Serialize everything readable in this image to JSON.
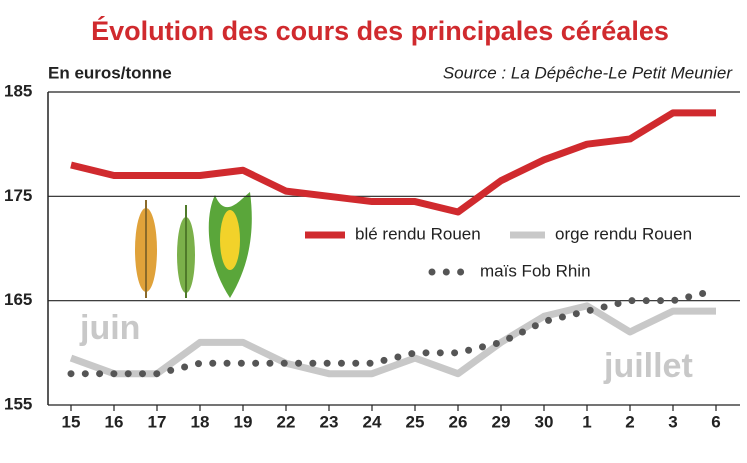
{
  "chart_data": {
    "type": "line",
    "title": "Évolution des cours des principales céréales",
    "y_label": "En euros/tonne",
    "source": "Source : La Dépêche-Le Petit Meunier",
    "annotations": [
      "juin",
      "juillet"
    ],
    "categories": [
      "15",
      "16",
      "17",
      "18",
      "19",
      "22",
      "23",
      "24",
      "25",
      "26",
      "29",
      "30",
      "1",
      "2",
      "3",
      "6"
    ],
    "series": [
      {
        "name": "blé rendu Rouen",
        "color": "#d02a2e",
        "style": "solid",
        "values": [
          178,
          177,
          177,
          177,
          177.5,
          175.5,
          175,
          174.5,
          174.5,
          173.5,
          176.5,
          178.5,
          180,
          180.5,
          183,
          183
        ]
      },
      {
        "name": "orge rendu Rouen",
        "color": "#c8c8c8",
        "style": "solid",
        "values": [
          159.5,
          158,
          158,
          161,
          161,
          159,
          158,
          158,
          159.5,
          158,
          161,
          163.5,
          164.5,
          162,
          164,
          164
        ]
      },
      {
        "name": "maïs Fob Rhin",
        "color": "#555555",
        "style": "dotted",
        "values": [
          158,
          158,
          158,
          159,
          159,
          159,
          159,
          159,
          160,
          160,
          161,
          163,
          164,
          165,
          165,
          166
        ]
      }
    ],
    "ylim": [
      155,
      185
    ],
    "yticks": [
      155,
      165,
      175,
      185
    ],
    "grid": true
  }
}
